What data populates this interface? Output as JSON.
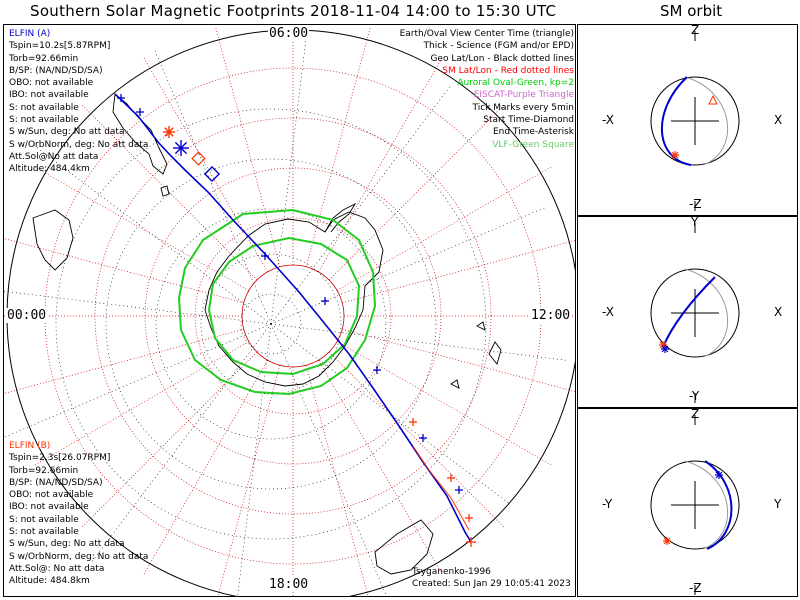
{
  "header": {
    "title": "Southern Solar Magnetic Footprints 2018-11-04 14:00 to 15:30 UTC",
    "orbit_title": "SM orbit"
  },
  "clock_labels": {
    "top": "06:00",
    "left": "00:00",
    "right": "12:00",
    "bottom": "18:00"
  },
  "legend": [
    {
      "text": "Earth/Oval View Center Time (triangle)",
      "color": "#000000"
    },
    {
      "text": "Thick - Science (FGM and/or EPD)",
      "color": "#000000"
    },
    {
      "text": "Geo Lat/Lon - Black dotted lines",
      "color": "#000000"
    },
    {
      "text": "SM Lat/Lon - Red dotted lines",
      "color": "#ff0000"
    },
    {
      "text": "Auroral Oval-Green, kp=2",
      "color": "#00cc00"
    },
    {
      "text": "EISCAT-Purple Triangle",
      "color": "#cc66cc"
    },
    {
      "text": "Tick Marks every 5min",
      "color": "#000000"
    },
    {
      "text": "Start Time-Diamond",
      "color": "#000000"
    },
    {
      "text": "End Time-Asterisk",
      "color": "#000000"
    },
    {
      "text": "VLF-Green Square",
      "color": "#66cc66"
    }
  ],
  "craft_a": {
    "name": "ELFIN (A)",
    "color": "#0000cc",
    "lines": [
      "Tspin=10.2s[5.87RPM]",
      "Torb=92.66min",
      "B/SP: (NA/ND/SD/SA)",
      "OBO: not available",
      "IBO: not available",
      "S: not available",
      "S: not available",
      "S w/Sun, deg: No att data",
      "S w/OrbNorm, deg: No att data",
      "Att.Sol@No att data",
      "Altitude: 484.4km"
    ]
  },
  "craft_b": {
    "name": "ELFIN (B)",
    "color": "#ff3300",
    "lines": [
      "Tspin=2.3s[26.07RPM]",
      "Torb=92.66min",
      "B/SP: (NA/ND/SD/SA)",
      "OBO: not available",
      "IBO: not available",
      "S: not available",
      "S: not available",
      "S w/Sun, deg: No att data",
      "S w/OrbNorm, deg: No att data",
      "Att.Sol@: No att data",
      "Altitude: 484.8km"
    ]
  },
  "credits": {
    "author": "Tsyganenko-1996",
    "created": "Created: Sun Jan 29 10:05:41 2023"
  },
  "orbit_panels": [
    {
      "top": "Z",
      "bottom": "-Z",
      "left": "-X",
      "right": "X"
    },
    {
      "top": "Y",
      "bottom": "-Y",
      "left": "-X",
      "right": "X"
    },
    {
      "top": "Z",
      "bottom": "-Z",
      "left": "-Y",
      "right": "Y"
    }
  ],
  "colors": {
    "track_a": "#0000cc",
    "track_b": "#ff3300",
    "sm_grid": "#cc0000",
    "geo_grid": "#000000",
    "oval": "#22cc22"
  }
}
